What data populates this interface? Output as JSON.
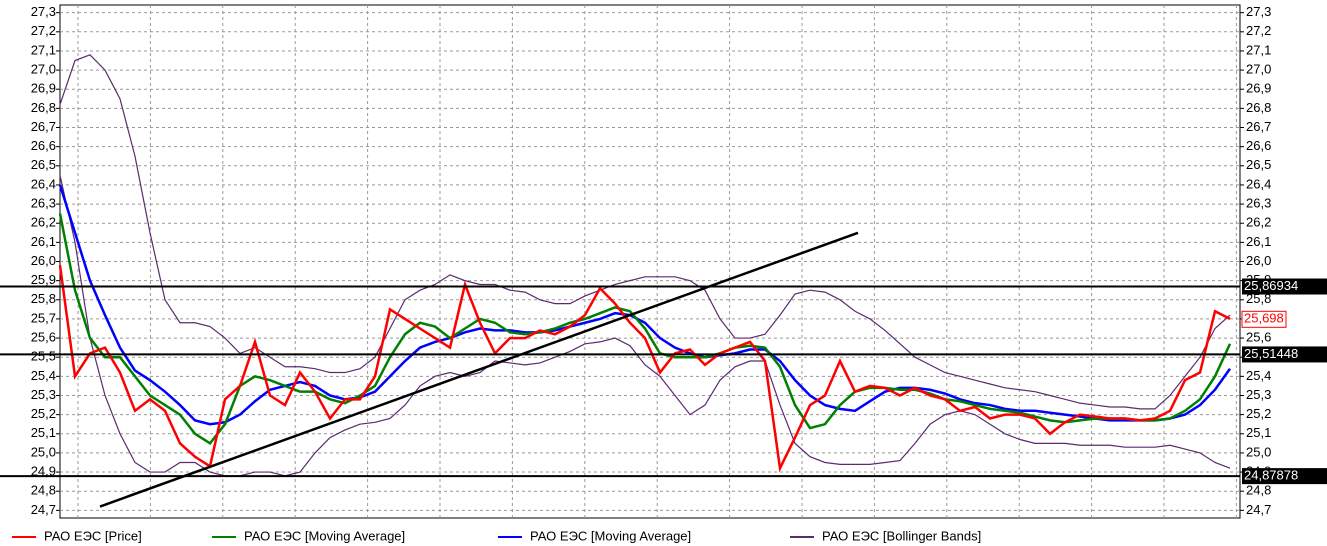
{
  "chart_data": {
    "type": "line",
    "ylim": [
      24.66,
      27.34
    ],
    "yticks": [
      {
        "value": 24.7,
        "label": "24,7"
      },
      {
        "value": 24.8,
        "label": "24,8"
      },
      {
        "value": 24.9,
        "label": "24,9"
      },
      {
        "value": 25.0,
        "label": "25,0"
      },
      {
        "value": 25.1,
        "label": "25,1"
      },
      {
        "value": 25.2,
        "label": "25,2"
      },
      {
        "value": 25.3,
        "label": "25,3"
      },
      {
        "value": 25.4,
        "label": "25,4"
      },
      {
        "value": 25.5,
        "label": "25,5"
      },
      {
        "value": 25.6,
        "label": "25,6"
      },
      {
        "value": 25.7,
        "label": "25,7"
      },
      {
        "value": 25.8,
        "label": "25,8"
      },
      {
        "value": 25.9,
        "label": "25,9"
      },
      {
        "value": 26.0,
        "label": "26,0"
      },
      {
        "value": 26.1,
        "label": "26,1"
      },
      {
        "value": 26.2,
        "label": "26,2"
      },
      {
        "value": 26.3,
        "label": "26,3"
      },
      {
        "value": 26.4,
        "label": "26,4"
      },
      {
        "value": 26.5,
        "label": "26,5"
      },
      {
        "value": 26.6,
        "label": "26,6"
      },
      {
        "value": 26.7,
        "label": "26,7"
      },
      {
        "value": 26.8,
        "label": "26,8"
      },
      {
        "value": 26.9,
        "label": "26,9"
      },
      {
        "value": 27.0,
        "label": "27,0"
      },
      {
        "value": 27.1,
        "label": "27,1"
      },
      {
        "value": 27.2,
        "label": "27,2"
      },
      {
        "value": 27.3,
        "label": "27,3"
      }
    ],
    "grid": true,
    "series": [
      {
        "name": "РАО ЕЭС [Price]",
        "color": "#ff0000",
        "values": [
          25.98,
          25.4,
          25.52,
          25.55,
          25.42,
          25.22,
          25.28,
          25.22,
          25.05,
          24.98,
          24.93,
          25.28,
          25.35,
          25.58,
          25.3,
          25.25,
          25.42,
          25.32,
          25.18,
          25.28,
          25.28,
          25.4,
          25.75,
          25.7,
          25.65,
          25.6,
          25.55,
          25.88,
          25.68,
          25.52,
          25.6,
          25.6,
          25.64,
          25.62,
          25.66,
          25.72,
          25.86,
          25.78,
          25.68,
          25.6,
          25.42,
          25.52,
          25.54,
          25.46,
          25.52,
          25.55,
          25.58,
          25.48,
          24.92,
          25.08,
          25.25,
          25.3,
          25.48,
          25.32,
          25.35,
          25.34,
          25.3,
          25.34,
          25.3,
          25.28,
          25.22,
          25.24,
          25.18,
          25.2,
          25.2,
          25.18,
          25.1,
          25.16,
          25.2,
          25.19,
          25.18,
          25.18,
          25.17,
          25.18,
          25.22,
          25.38,
          25.42,
          25.74,
          25.7
        ]
      },
      {
        "name": "РАО ЕЭС [Moving Average]",
        "color": "#008000",
        "values": [
          26.25,
          25.85,
          25.6,
          25.5,
          25.5,
          25.4,
          25.3,
          25.25,
          25.2,
          25.1,
          25.05,
          25.15,
          25.35,
          25.4,
          25.38,
          25.35,
          25.32,
          25.32,
          25.28,
          25.26,
          25.3,
          25.35,
          25.5,
          25.62,
          25.68,
          25.66,
          25.6,
          25.65,
          25.7,
          25.68,
          25.63,
          25.62,
          25.63,
          25.65,
          25.68,
          25.7,
          25.73,
          25.76,
          25.74,
          25.65,
          25.52,
          25.5,
          25.5,
          25.5,
          25.52,
          25.55,
          25.56,
          25.55,
          25.45,
          25.25,
          25.13,
          25.15,
          25.25,
          25.32,
          25.34,
          25.34,
          25.33,
          25.33,
          25.31,
          25.28,
          25.27,
          25.25,
          25.23,
          25.22,
          25.21,
          25.19,
          25.17,
          25.16,
          25.17,
          25.18,
          25.18,
          25.18,
          25.17,
          25.17,
          25.18,
          25.22,
          25.28,
          25.4,
          25.57
        ]
      },
      {
        "name": "РАО ЕЭС [Moving Average]",
        "color": "#0000ff",
        "values": [
          26.4,
          26.15,
          25.9,
          25.72,
          25.55,
          25.43,
          25.38,
          25.32,
          25.25,
          25.17,
          25.15,
          25.16,
          25.2,
          25.27,
          25.33,
          25.35,
          25.37,
          25.35,
          25.3,
          25.28,
          25.29,
          25.32,
          25.4,
          25.48,
          25.55,
          25.58,
          25.6,
          25.63,
          25.65,
          25.64,
          25.64,
          25.63,
          25.63,
          25.64,
          25.66,
          25.68,
          25.7,
          25.73,
          25.72,
          25.68,
          25.6,
          25.55,
          25.52,
          25.5,
          25.51,
          25.52,
          25.54,
          25.54,
          25.48,
          25.38,
          25.3,
          25.25,
          25.23,
          25.22,
          25.27,
          25.32,
          25.34,
          25.34,
          25.33,
          25.31,
          25.28,
          25.26,
          25.25,
          25.23,
          25.22,
          25.22,
          25.21,
          25.2,
          25.19,
          25.18,
          25.17,
          25.17,
          25.17,
          25.17,
          25.18,
          25.2,
          25.25,
          25.33,
          25.44
        ]
      },
      {
        "name": "РАО ЕЭС [Bollinger Bands]",
        "color": "#5c2a6e",
        "values": [
          26.82,
          27.05,
          27.08,
          27.0,
          26.85,
          26.55,
          26.15,
          25.8,
          25.68,
          25.68,
          25.66,
          25.6,
          25.52,
          25.55,
          25.5,
          25.45,
          25.45,
          25.44,
          25.42,
          25.42,
          25.44,
          25.5,
          25.65,
          25.8,
          25.85,
          25.88,
          25.93,
          25.9,
          25.88,
          25.88,
          25.85,
          25.84,
          25.8,
          25.78,
          25.78,
          25.82,
          25.85,
          25.88,
          25.9,
          25.92,
          25.92,
          25.92,
          25.9,
          25.85,
          25.7,
          25.6,
          25.6,
          25.62,
          25.72,
          25.83,
          25.85,
          25.84,
          25.8,
          25.74,
          25.7,
          25.64,
          25.57,
          25.5,
          25.46,
          25.42,
          25.4,
          25.38,
          25.36,
          25.34,
          25.33,
          25.32,
          25.3,
          25.28,
          25.26,
          25.25,
          25.24,
          25.24,
          25.23,
          25.23,
          25.3,
          25.4,
          25.5,
          25.65,
          25.72
        ],
        "lower": [
          26.45,
          26.1,
          25.6,
          25.3,
          25.1,
          24.95,
          24.9,
          24.9,
          24.95,
          24.95,
          24.9,
          24.88,
          24.88,
          24.9,
          24.9,
          24.88,
          24.9,
          25.0,
          25.08,
          25.12,
          25.15,
          25.16,
          25.18,
          25.25,
          25.35,
          25.4,
          25.42,
          25.4,
          25.42,
          25.48,
          25.47,
          25.46,
          25.47,
          25.5,
          25.53,
          25.57,
          25.58,
          25.6,
          25.56,
          25.46,
          25.4,
          25.3,
          25.2,
          25.25,
          25.38,
          25.45,
          25.48,
          25.48,
          25.25,
          25.05,
          24.98,
          24.95,
          24.94,
          24.94,
          24.94,
          24.95,
          24.96,
          25.05,
          25.15,
          25.2,
          25.22,
          25.2,
          25.15,
          25.1,
          25.07,
          25.05,
          25.05,
          25.05,
          25.04,
          25.04,
          25.04,
          25.03,
          25.03,
          25.03,
          25.04,
          25.02,
          25.0,
          24.95,
          24.92
        ]
      }
    ],
    "hlines": [
      {
        "value": 25.86934,
        "label": "25,86934"
      },
      {
        "value": 25.51448,
        "label": "25,51448"
      },
      {
        "value": 24.87878,
        "label": "24,87878"
      }
    ],
    "last_label": {
      "value": 25.698,
      "label": "25,698"
    },
    "trendline": {
      "values": [
        24.72,
        26.15
      ]
    }
  }
}
